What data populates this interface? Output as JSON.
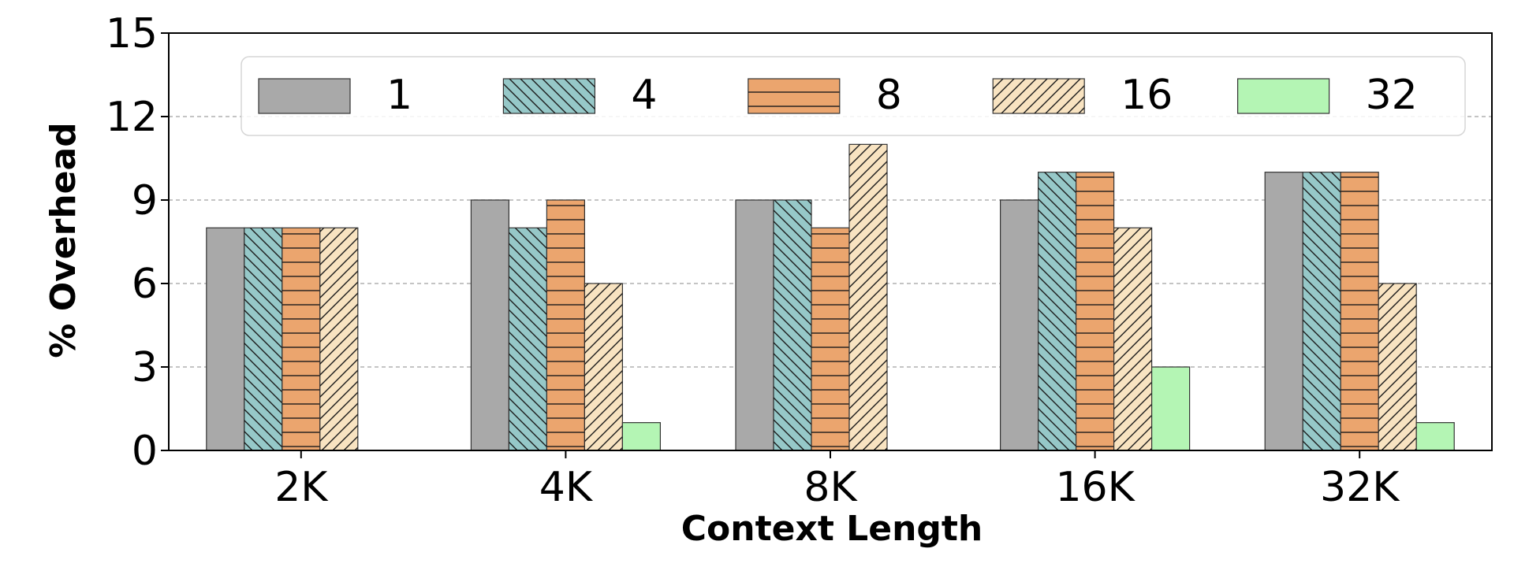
{
  "chart_data": {
    "type": "bar",
    "xlabel": "Context Length",
    "ylabel": "% Overhead",
    "categories": [
      "2K",
      "4K",
      "8K",
      "16K",
      "32K"
    ],
    "ylim": [
      0,
      15
    ],
    "yticks": [
      0,
      3,
      6,
      9,
      12,
      15
    ],
    "grid": "horizontal dashed",
    "legend_placement": "top",
    "series": [
      {
        "name": "1",
        "values": [
          8,
          9,
          9,
          9,
          10
        ],
        "color": "#a9a9a9",
        "hatch": "none"
      },
      {
        "name": "4",
        "values": [
          8,
          8,
          9,
          10,
          10
        ],
        "color": "#96c8c8",
        "hatch": "backslash"
      },
      {
        "name": "8",
        "values": [
          8,
          9,
          8,
          10,
          10
        ],
        "color": "#eba56e",
        "hatch": "horizontal"
      },
      {
        "name": "16",
        "values": [
          8,
          6,
          11,
          8,
          6
        ],
        "color": "#f8e3c1",
        "hatch": "slash"
      },
      {
        "name": "32",
        "values": [
          0,
          1,
          0,
          3,
          1
        ],
        "color": "#b4f5b4",
        "hatch": "none"
      }
    ]
  }
}
